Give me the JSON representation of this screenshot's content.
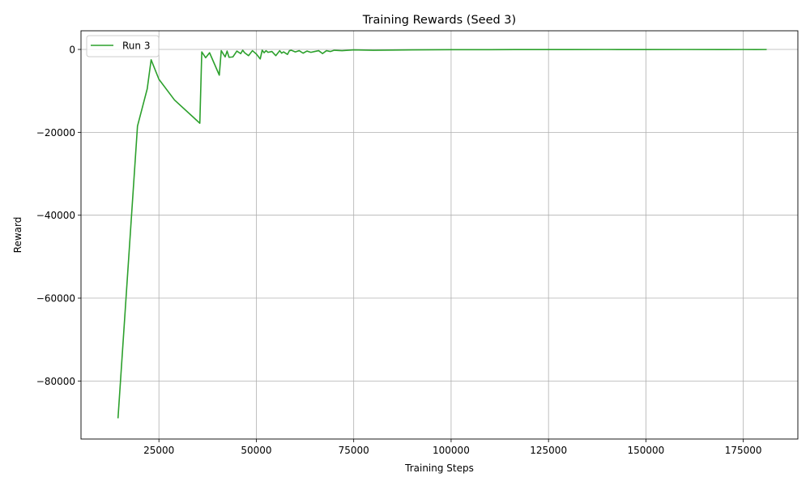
{
  "chart_data": {
    "type": "line",
    "title": "Training Rewards (Seed 3)",
    "xlabel": "Training Steps",
    "ylabel": "Reward",
    "xlim": [
      5000,
      189000
    ],
    "ylim": [
      -94000,
      4500
    ],
    "xticks": [
      25000,
      50000,
      75000,
      100000,
      125000,
      150000,
      175000
    ],
    "xtick_labels": [
      "25000",
      "50000",
      "75000",
      "100000",
      "125000",
      "150000",
      "175000"
    ],
    "yticks": [
      0,
      -20000,
      -40000,
      -60000,
      -80000
    ],
    "ytick_labels": [
      "0",
      "−20000",
      "−40000",
      "−60000",
      "−80000"
    ],
    "grid": true,
    "legend_position": "top-left",
    "series": [
      {
        "name": "Run 3",
        "color": "#2ca02c",
        "x": [
          14500,
          19500,
          22000,
          23000,
          25000,
          29000,
          35500,
          36000,
          37000,
          38000,
          40500,
          41000,
          42000,
          42500,
          43000,
          44000,
          45000,
          46000,
          46500,
          47000,
          48000,
          49000,
          50000,
          51000,
          51500,
          52000,
          52500,
          53000,
          54000,
          55000,
          56000,
          56500,
          57000,
          58000,
          58500,
          59000,
          60000,
          61000,
          62000,
          63000,
          64000,
          65000,
          66000,
          67000,
          68000,
          69000,
          70000,
          72000,
          75000,
          80000,
          85000,
          90000,
          95000,
          100000,
          110000,
          120000,
          130000,
          140000,
          150000,
          160000,
          170000,
          175000,
          178000,
          181000
        ],
        "y": [
          -89000,
          -18500,
          -9500,
          -2500,
          -7200,
          -12200,
          -17800,
          -600,
          -2000,
          -800,
          -6200,
          -300,
          -1800,
          -400,
          -1900,
          -1800,
          -400,
          -1000,
          -200,
          -800,
          -1500,
          -300,
          -1100,
          -2300,
          -200,
          -800,
          -300,
          -700,
          -500,
          -1500,
          -300,
          -900,
          -600,
          -1200,
          -300,
          -200,
          -600,
          -300,
          -900,
          -400,
          -700,
          -500,
          -300,
          -1000,
          -300,
          -500,
          -200,
          -300,
          -100,
          -200,
          -150,
          -100,
          -80,
          -50,
          -60,
          -30,
          -40,
          -20,
          -30,
          -20,
          -40,
          -20,
          -30,
          -20
        ]
      }
    ]
  }
}
